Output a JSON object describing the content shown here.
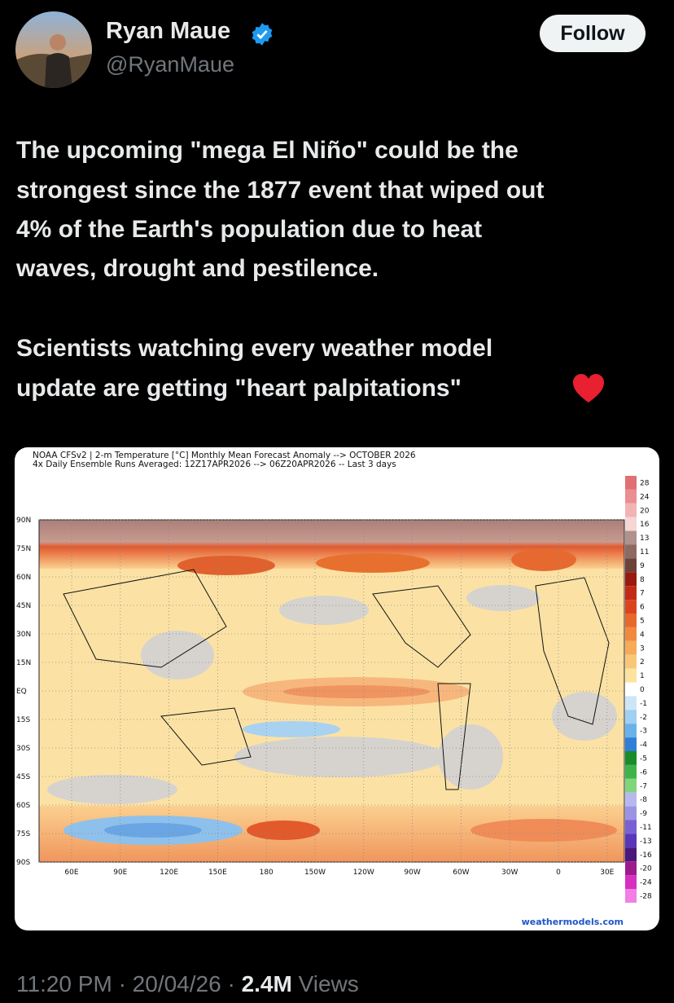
{
  "author": {
    "name": "Ryan Maue",
    "handle": "@RyanMaue"
  },
  "follow_button": "Follow",
  "text": {
    "paragraphs": [
      {
        "lines": [
          "The upcoming \"mega El Niño\" could be the",
          "strongest since the 1877 event that wiped out",
          "4% of the Earth's population due to heat",
          "waves, drought and pestilence."
        ]
      },
      {
        "lines": [
          "Scientists watching every weather model",
          "update are getting \"heart palpitations\""
        ]
      }
    ]
  },
  "image": {
    "title_lines": [
      "NOAA CFSv2 | 2-m Temperature [°C] Monthly Mean Forecast Anomaly --> OCTOBER 2026",
      "4x Daily Ensemble Runs Averaged: 12Z17APR2026 --> 06Z20APR2026 -- Last 3 days"
    ],
    "lat_labels": [
      "90N",
      "75N",
      "60N",
      "45N",
      "30N",
      "15N",
      "EQ",
      "15S",
      "30S",
      "45S",
      "60S",
      "75S",
      "90S"
    ],
    "lon_labels": [
      "60E",
      "90E",
      "120E",
      "150E",
      "180",
      "150W",
      "120W",
      "90W",
      "60W",
      "30W",
      "0",
      "30E"
    ],
    "colorbar_labels": [
      "28",
      "24",
      "20",
      "16",
      "13",
      "11",
      "9",
      "8",
      "7",
      "6",
      "5",
      "4",
      "3",
      "2",
      "1",
      "0",
      "-1",
      "-2",
      "-3",
      "-4",
      "-5",
      "-6",
      "-7",
      "-8",
      "-9",
      "-11",
      "-13",
      "-16",
      "-20",
      "-24",
      "-28"
    ],
    "watermark": "weathermodels.com"
  },
  "footer": {
    "time": "11:20 PM",
    "separator": "·",
    "date": "20/04/26",
    "views_count": "2.4M",
    "views_label": "Views"
  }
}
